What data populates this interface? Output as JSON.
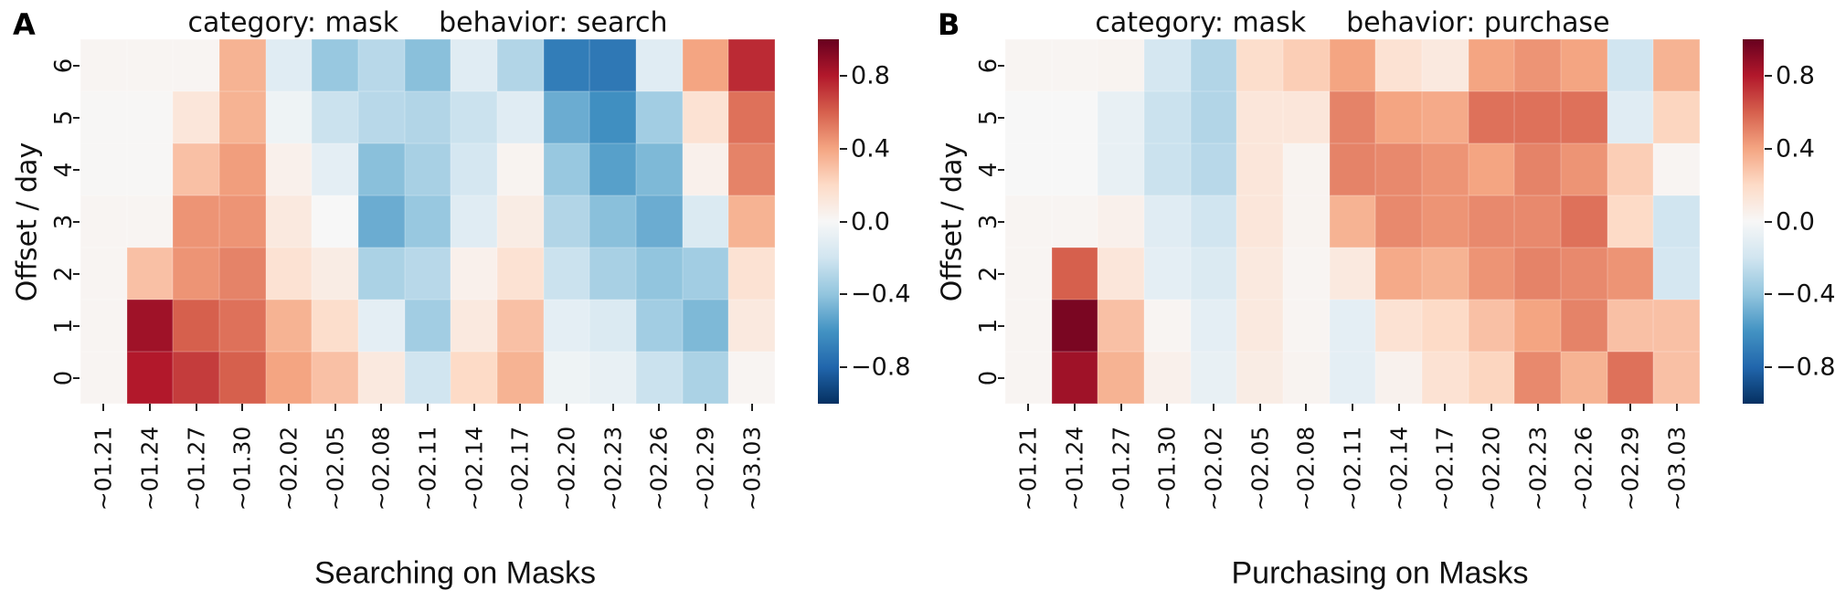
{
  "figure_type": "two-panel correlation heatmap figure",
  "colorscale": {
    "name": "RdBu_r",
    "domain": [
      -1,
      1
    ],
    "anchors_low_to_high": [
      "#053061",
      "#2166ac",
      "#4393c3",
      "#92c5de",
      "#d1e5f0",
      "#f7f7f7",
      "#fddbc7",
      "#f4a582",
      "#d6604d",
      "#b2182b",
      "#67001f"
    ]
  },
  "chart_data": [
    {
      "type": "heatmap",
      "panel_label": "A",
      "title_category": "category: mask",
      "title_behavior": "behavior: search",
      "ylabel": "Offset / day",
      "xlabel": "Searching on Masks",
      "yticks": [
        "6",
        "5",
        "4",
        "3",
        "2",
        "1",
        "0"
      ],
      "xticks": [
        "~01.21",
        "~01.24",
        "~01.27",
        "~01.30",
        "~02.02",
        "~02.05",
        "~02.08",
        "~02.11",
        "~02.14",
        "~02.17",
        "~02.20",
        "~02.23",
        "~02.26",
        "~02.29",
        "~03.03"
      ],
      "colorbar_ticks": [
        "0.8",
        "0.4",
        "0.0",
        "−0.4",
        "−0.8"
      ],
      "colorbar_tick_values": [
        0.8,
        0.4,
        0.0,
        -0.4,
        -0.8
      ],
      "rows_order": "offset 6 (top) to offset 0 (bottom)",
      "values": [
        [
          0.02,
          0.02,
          0.02,
          0.35,
          -0.12,
          -0.38,
          -0.28,
          -0.42,
          -0.12,
          -0.3,
          -0.7,
          -0.72,
          -0.12,
          0.4,
          0.75
        ],
        [
          0.01,
          0.01,
          0.12,
          0.35,
          -0.05,
          -0.22,
          -0.28,
          -0.3,
          -0.22,
          -0.12,
          -0.5,
          -0.62,
          -0.35,
          0.15,
          0.55
        ],
        [
          0.01,
          0.01,
          0.3,
          0.42,
          0.05,
          -0.1,
          -0.42,
          -0.33,
          -0.18,
          0.03,
          -0.38,
          -0.55,
          -0.45,
          0.05,
          0.5
        ],
        [
          0.02,
          0.02,
          0.45,
          0.45,
          0.1,
          0.0,
          -0.5,
          -0.38,
          -0.12,
          0.08,
          -0.3,
          -0.42,
          -0.5,
          -0.15,
          0.35
        ],
        [
          0.02,
          0.3,
          0.45,
          0.5,
          0.15,
          0.08,
          -0.32,
          -0.28,
          0.05,
          0.15,
          -0.22,
          -0.33,
          -0.4,
          -0.35,
          0.15
        ],
        [
          0.02,
          0.85,
          0.6,
          0.55,
          0.35,
          0.18,
          -0.1,
          -0.35,
          0.1,
          0.3,
          -0.1,
          -0.15,
          -0.35,
          -0.45,
          0.1
        ],
        [
          0.02,
          0.8,
          0.7,
          0.6,
          0.4,
          0.3,
          0.1,
          -0.2,
          0.2,
          0.35,
          -0.05,
          -0.08,
          -0.22,
          -0.32,
          0.02
        ]
      ]
    },
    {
      "type": "heatmap",
      "panel_label": "B",
      "title_category": "category: mask",
      "title_behavior": "behavior: purchase",
      "ylabel": "Offset / day",
      "xlabel": "Purchasing on Masks",
      "yticks": [
        "6",
        "5",
        "4",
        "3",
        "2",
        "1",
        "0"
      ],
      "xticks": [
        "~01.21",
        "~01.24",
        "~01.27",
        "~01.30",
        "~02.02",
        "~02.05",
        "~02.08",
        "~02.11",
        "~02.14",
        "~02.17",
        "~02.20",
        "~02.23",
        "~02.26",
        "~02.29",
        "~03.03"
      ],
      "colorbar_ticks": [
        "0.8",
        "0.4",
        "0.0",
        "−0.4",
        "−0.8"
      ],
      "colorbar_tick_values": [
        0.8,
        0.4,
        0.0,
        -0.4,
        -0.8
      ],
      "rows_order": "offset 6 (top) to offset 0 (bottom)",
      "values": [
        [
          0.02,
          0.02,
          0.03,
          -0.18,
          -0.3,
          0.18,
          0.25,
          0.4,
          0.15,
          0.1,
          0.4,
          0.45,
          0.4,
          -0.2,
          0.35
        ],
        [
          0.0,
          0.0,
          -0.08,
          -0.22,
          -0.3,
          0.12,
          0.12,
          0.5,
          0.4,
          0.38,
          0.55,
          0.55,
          0.55,
          -0.12,
          0.22
        ],
        [
          0.0,
          0.0,
          -0.08,
          -0.22,
          -0.28,
          0.12,
          0.03,
          0.5,
          0.48,
          0.45,
          0.4,
          0.5,
          0.45,
          0.25,
          0.02
        ],
        [
          0.02,
          0.02,
          0.05,
          -0.12,
          -0.2,
          0.12,
          0.03,
          0.35,
          0.48,
          0.45,
          0.48,
          0.48,
          0.55,
          0.2,
          -0.2
        ],
        [
          0.02,
          0.6,
          0.12,
          -0.1,
          -0.15,
          0.1,
          0.02,
          0.1,
          0.38,
          0.35,
          0.45,
          0.5,
          0.48,
          0.45,
          -0.18
        ],
        [
          0.02,
          0.95,
          0.3,
          0.02,
          -0.1,
          0.1,
          0.02,
          -0.1,
          0.15,
          0.2,
          0.3,
          0.4,
          0.5,
          0.3,
          0.3
        ],
        [
          0.02,
          0.85,
          0.35,
          0.05,
          -0.08,
          0.08,
          0.03,
          -0.1,
          0.04,
          0.15,
          0.22,
          0.48,
          0.35,
          0.55,
          0.3
        ]
      ]
    }
  ]
}
